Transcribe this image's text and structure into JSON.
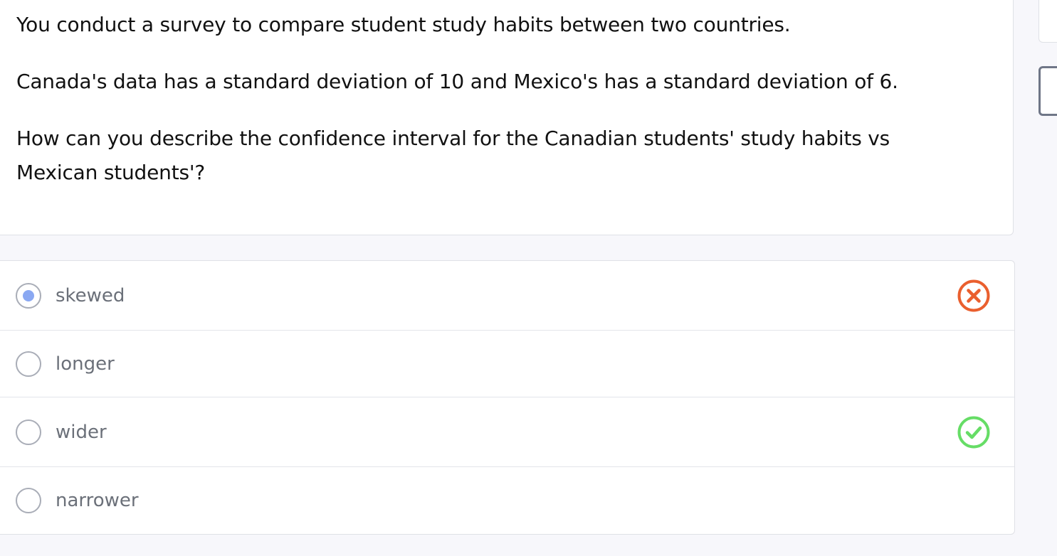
{
  "question": {
    "line1": "You conduct a survey to compare student study habits between two countries.",
    "line2": "Canada's data has a standard deviation of 10 and Mexico's has a standard deviation of 6.",
    "line3a": "How can you describe the confidence interval for the Canadian students' study habits vs",
    "line3b": "Mexican students'?"
  },
  "options": [
    {
      "label": "skewed",
      "selected": true,
      "status": "incorrect"
    },
    {
      "label": "longer",
      "selected": false,
      "status": "none"
    },
    {
      "label": "wider",
      "selected": false,
      "status": "correct"
    },
    {
      "label": "narrower",
      "selected": false,
      "status": "none"
    }
  ],
  "colors": {
    "incorrect": "#ea5f2e",
    "correct": "#66dd66",
    "selected_dot": "#8aa8f2"
  },
  "icons": {
    "incorrect": "x-circle-icon",
    "correct": "check-circle-icon"
  }
}
